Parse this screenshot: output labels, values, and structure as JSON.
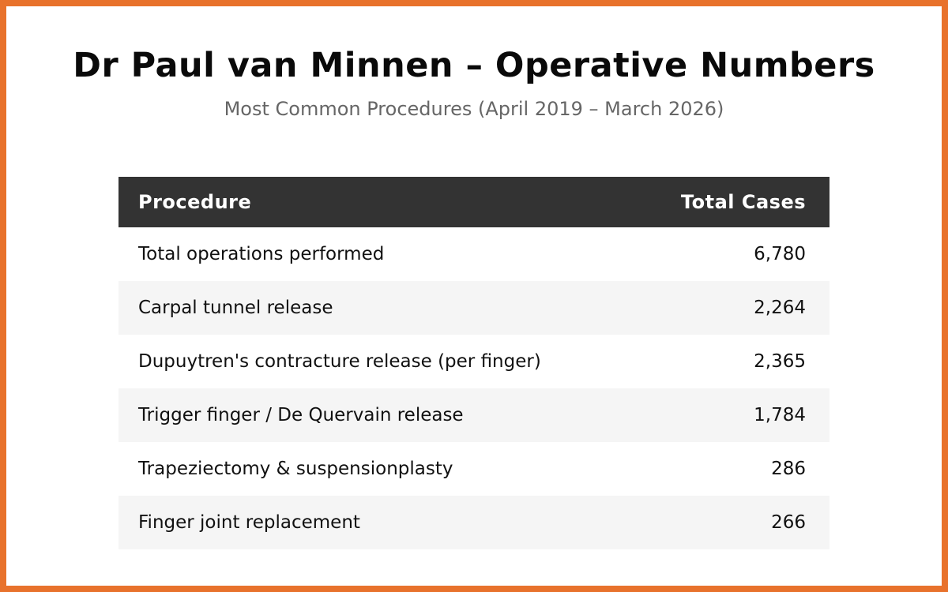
{
  "accent_color": "#e8722c",
  "header_bg_color": "#333333",
  "stripe_color": "#f5f5f5",
  "header": {
    "title": "Dr Paul van Minnen – Operative Numbers",
    "subtitle": "Most Common Procedures (April 2019 – March 2026)"
  },
  "table": {
    "columns": {
      "procedure": "Procedure",
      "cases": "Total Cases"
    },
    "rows": [
      {
        "procedure": "Total operations performed",
        "cases": "6,780"
      },
      {
        "procedure": "Carpal tunnel release",
        "cases": "2,264"
      },
      {
        "procedure": "Dupuytren's contracture release (per finger)",
        "cases": "2,365"
      },
      {
        "procedure": "Trigger finger / De Quervain release",
        "cases": "1,784"
      },
      {
        "procedure": "Trapeziectomy & suspensionplasty",
        "cases": "286"
      },
      {
        "procedure": "Finger joint replacement",
        "cases": "266"
      }
    ]
  },
  "chart_data": {
    "type": "table",
    "title": "Dr Paul van Minnen – Operative Numbers",
    "subtitle": "Most Common Procedures (April 2019 – March 2026)",
    "columns": [
      "Procedure",
      "Total Cases"
    ],
    "rows": [
      [
        "Total operations performed",
        6780
      ],
      [
        "Carpal tunnel release",
        2264
      ],
      [
        "Dupuytren's contracture release (per finger)",
        2365
      ],
      [
        "Trigger finger / De Quervain release",
        1784
      ],
      [
        "Trapeziectomy & suspensionplasty",
        286
      ],
      [
        "Finger joint replacement",
        266
      ]
    ],
    "layout_hints": {
      "header_style": "dark bar, white bold text",
      "row_striping": "white / light-gray alternating",
      "value_alignment": "right",
      "canvas_border": "orange 8px"
    }
  }
}
